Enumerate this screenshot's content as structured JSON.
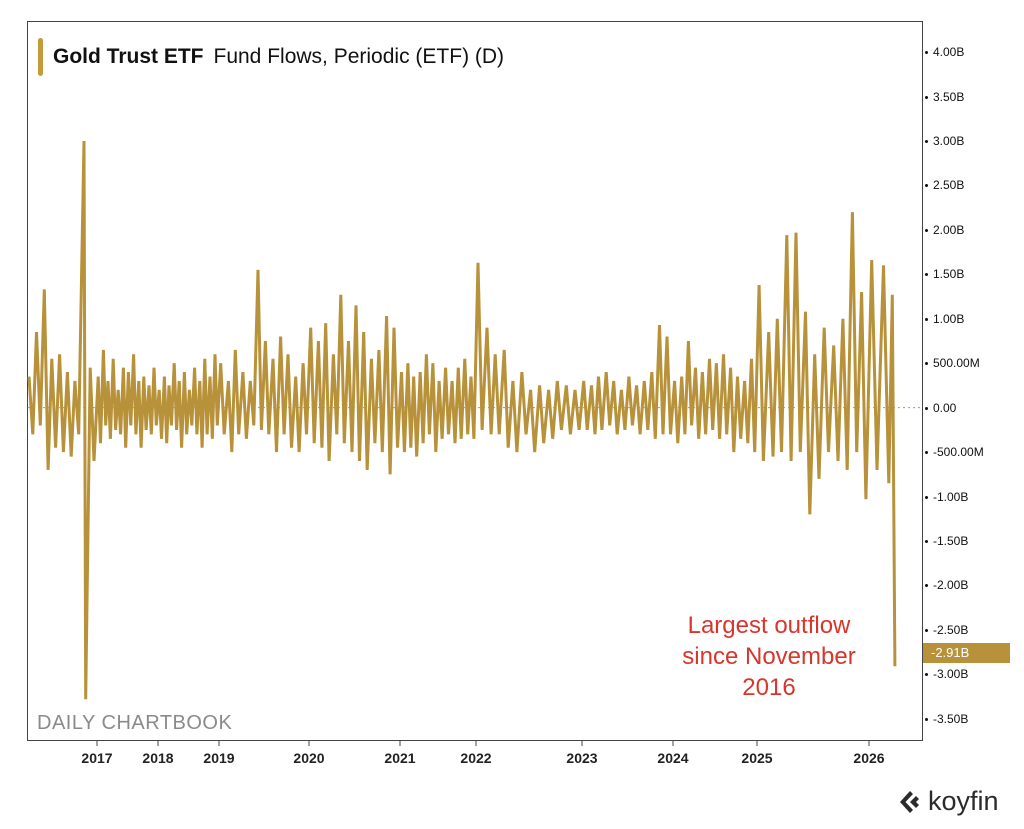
{
  "chart_data": {
    "type": "line",
    "title": "Gold Trust ETF",
    "subtitle": "Fund Flows, Periodic (ETF) (D)",
    "series_color": "#B8923A",
    "annotation_color": "#D8362C",
    "xlabel": "",
    "ylabel": "",
    "xlim": [
      "2016-04-01",
      "2026-05-20"
    ],
    "ylim": [
      -3.75,
      4.35
    ],
    "y_unit": "B",
    "grid": false,
    "zero_line": "dotted",
    "y_axis_position": "right",
    "x_ticks": [
      "2017",
      "2018",
      "2019",
      "2020",
      "2021",
      "2022",
      "2023",
      "2024",
      "2025",
      "2026"
    ],
    "y_ticks": [
      {
        "value": 4.0,
        "label": "4.00B"
      },
      {
        "value": 3.5,
        "label": "3.50B"
      },
      {
        "value": 3.0,
        "label": "3.00B"
      },
      {
        "value": 2.5,
        "label": "2.50B"
      },
      {
        "value": 2.0,
        "label": "2.00B"
      },
      {
        "value": 1.5,
        "label": "1.50B"
      },
      {
        "value": 1.0,
        "label": "1.00B"
      },
      {
        "value": 0.5,
        "label": "500.00M"
      },
      {
        "value": 0.0,
        "label": "0.00"
      },
      {
        "value": -0.5,
        "label": "-500.00M"
      },
      {
        "value": -1.0,
        "label": "-1.00B"
      },
      {
        "value": -1.5,
        "label": "-1.50B"
      },
      {
        "value": -2.0,
        "label": "-2.00B"
      },
      {
        "value": -2.5,
        "label": "-2.50B"
      },
      {
        "value": -3.0,
        "label": "-3.00B"
      },
      {
        "value": -3.5,
        "label": "-3.50B"
      }
    ],
    "last_value_label": "-2.91B",
    "last_value": -2.91,
    "annotation": [
      "Largest outflow",
      "since November",
      "2016"
    ],
    "watermark": "DAILY CHARTBOOK",
    "points": [
      [
        "2016-04-05",
        0.35
      ],
      [
        "2016-04-20",
        -0.3
      ],
      [
        "2016-05-05",
        0.85
      ],
      [
        "2016-05-20",
        -0.2
      ],
      [
        "2016-06-05",
        1.33
      ],
      [
        "2016-06-20",
        -0.7
      ],
      [
        "2016-07-05",
        0.55
      ],
      [
        "2016-07-20",
        -0.45
      ],
      [
        "2016-08-05",
        0.6
      ],
      [
        "2016-08-20",
        -0.5
      ],
      [
        "2016-09-05",
        0.4
      ],
      [
        "2016-09-20",
        -0.55
      ],
      [
        "2016-10-05",
        0.3
      ],
      [
        "2016-10-20",
        -0.3
      ],
      [
        "2016-11-10",
        3.0
      ],
      [
        "2016-11-17",
        -3.28
      ],
      [
        "2016-12-05",
        0.45
      ],
      [
        "2016-12-20",
        -0.6
      ],
      [
        "2017-01-08",
        0.35
      ],
      [
        "2017-01-22",
        -0.4
      ],
      [
        "2017-02-08",
        0.65
      ],
      [
        "2017-02-22",
        -0.2
      ],
      [
        "2017-03-08",
        0.3
      ],
      [
        "2017-03-22",
        -0.35
      ],
      [
        "2017-04-08",
        0.55
      ],
      [
        "2017-04-22",
        -0.25
      ],
      [
        "2017-05-08",
        0.2
      ],
      [
        "2017-05-22",
        -0.3
      ],
      [
        "2017-06-08",
        0.45
      ],
      [
        "2017-06-22",
        -0.45
      ],
      [
        "2017-07-08",
        0.4
      ],
      [
        "2017-07-22",
        -0.2
      ],
      [
        "2017-08-08",
        0.6
      ],
      [
        "2017-08-22",
        -0.3
      ],
      [
        "2017-09-08",
        0.3
      ],
      [
        "2017-09-22",
        -0.45
      ],
      [
        "2017-10-08",
        0.35
      ],
      [
        "2017-10-22",
        -0.25
      ],
      [
        "2017-11-08",
        0.25
      ],
      [
        "2017-11-22",
        -0.3
      ],
      [
        "2017-12-08",
        0.45
      ],
      [
        "2017-12-22",
        -0.2
      ],
      [
        "2018-01-08",
        0.2
      ],
      [
        "2018-01-22",
        -0.35
      ],
      [
        "2018-02-08",
        0.35
      ],
      [
        "2018-02-22",
        -0.4
      ],
      [
        "2018-03-08",
        0.25
      ],
      [
        "2018-03-22",
        -0.2
      ],
      [
        "2018-04-08",
        0.5
      ],
      [
        "2018-04-22",
        -0.25
      ],
      [
        "2018-05-08",
        0.3
      ],
      [
        "2018-05-22",
        -0.45
      ],
      [
        "2018-06-08",
        0.4
      ],
      [
        "2018-06-22",
        -0.3
      ],
      [
        "2018-07-08",
        0.2
      ],
      [
        "2018-07-22",
        -0.2
      ],
      [
        "2018-08-08",
        0.45
      ],
      [
        "2018-08-22",
        -0.3
      ],
      [
        "2018-09-08",
        0.3
      ],
      [
        "2018-09-22",
        -0.45
      ],
      [
        "2018-10-08",
        0.55
      ],
      [
        "2018-10-22",
        -0.3
      ],
      [
        "2018-11-08",
        0.35
      ],
      [
        "2018-11-22",
        -0.35
      ],
      [
        "2018-12-08",
        0.6
      ],
      [
        "2018-12-22",
        -0.2
      ],
      [
        "2019-01-08",
        0.5
      ],
      [
        "2019-01-22",
        -0.3
      ],
      [
        "2019-02-08",
        0.3
      ],
      [
        "2019-02-22",
        -0.5
      ],
      [
        "2019-03-08",
        0.65
      ],
      [
        "2019-03-22",
        -0.3
      ],
      [
        "2019-04-08",
        0.4
      ],
      [
        "2019-04-22",
        -0.35
      ],
      [
        "2019-05-08",
        0.3
      ],
      [
        "2019-05-22",
        -0.2
      ],
      [
        "2019-06-08",
        1.55
      ],
      [
        "2019-06-22",
        -0.25
      ],
      [
        "2019-07-08",
        0.75
      ],
      [
        "2019-07-22",
        -0.3
      ],
      [
        "2019-08-08",
        0.55
      ],
      [
        "2019-08-22",
        -0.5
      ],
      [
        "2019-09-08",
        0.8
      ],
      [
        "2019-09-22",
        -0.3
      ],
      [
        "2019-10-08",
        0.6
      ],
      [
        "2019-10-22",
        -0.45
      ],
      [
        "2019-11-08",
        0.35
      ],
      [
        "2019-11-22",
        -0.5
      ],
      [
        "2019-12-08",
        0.5
      ],
      [
        "2019-12-22",
        -0.3
      ],
      [
        "2020-01-08",
        0.9
      ],
      [
        "2020-01-22",
        -0.4
      ],
      [
        "2020-02-08",
        0.75
      ],
      [
        "2020-02-22",
        -0.45
      ],
      [
        "2020-03-08",
        0.95
      ],
      [
        "2020-03-22",
        -0.6
      ],
      [
        "2020-04-08",
        0.6
      ],
      [
        "2020-04-22",
        -0.3
      ],
      [
        "2020-05-08",
        1.27
      ],
      [
        "2020-05-22",
        -0.4
      ],
      [
        "2020-06-08",
        0.75
      ],
      [
        "2020-06-22",
        -0.5
      ],
      [
        "2020-07-08",
        1.15
      ],
      [
        "2020-07-22",
        -0.6
      ],
      [
        "2020-08-08",
        0.85
      ],
      [
        "2020-08-22",
        -0.7
      ],
      [
        "2020-09-08",
        0.55
      ],
      [
        "2020-09-22",
        -0.4
      ],
      [
        "2020-10-08",
        0.65
      ],
      [
        "2020-10-22",
        -0.5
      ],
      [
        "2020-11-08",
        1.03
      ],
      [
        "2020-11-22",
        -0.75
      ],
      [
        "2020-12-08",
        0.9
      ],
      [
        "2020-12-22",
        -0.45
      ],
      [
        "2021-01-08",
        0.4
      ],
      [
        "2021-01-22",
        -0.5
      ],
      [
        "2021-02-08",
        0.5
      ],
      [
        "2021-02-22",
        -0.45
      ],
      [
        "2021-03-08",
        0.35
      ],
      [
        "2021-03-22",
        -0.55
      ],
      [
        "2021-04-08",
        0.4
      ],
      [
        "2021-04-22",
        -0.4
      ],
      [
        "2021-05-08",
        0.6
      ],
      [
        "2021-05-22",
        -0.3
      ],
      [
        "2021-06-08",
        0.5
      ],
      [
        "2021-06-22",
        -0.5
      ],
      [
        "2021-07-08",
        0.3
      ],
      [
        "2021-07-22",
        -0.35
      ],
      [
        "2021-08-08",
        0.45
      ],
      [
        "2021-08-22",
        -0.3
      ],
      [
        "2021-09-08",
        0.3
      ],
      [
        "2021-09-22",
        -0.4
      ],
      [
        "2021-10-08",
        0.45
      ],
      [
        "2021-10-22",
        -0.35
      ],
      [
        "2021-11-08",
        0.55
      ],
      [
        "2021-11-22",
        -0.3
      ],
      [
        "2021-12-08",
        0.35
      ],
      [
        "2021-12-22",
        -0.35
      ],
      [
        "2022-01-08",
        1.63
      ],
      [
        "2022-01-22",
        -0.25
      ],
      [
        "2022-02-08",
        0.9
      ],
      [
        "2022-02-22",
        -0.3
      ],
      [
        "2022-03-08",
        0.6
      ],
      [
        "2022-03-22",
        -0.3
      ],
      [
        "2022-04-08",
        0.65
      ],
      [
        "2022-04-22",
        -0.45
      ],
      [
        "2022-05-08",
        0.3
      ],
      [
        "2022-05-22",
        -0.5
      ],
      [
        "2022-06-08",
        0.4
      ],
      [
        "2022-06-22",
        -0.3
      ],
      [
        "2022-07-08",
        0.2
      ],
      [
        "2022-07-22",
        -0.5
      ],
      [
        "2022-08-08",
        0.25
      ],
      [
        "2022-08-22",
        -0.4
      ],
      [
        "2022-09-08",
        0.2
      ],
      [
        "2022-09-22",
        -0.35
      ],
      [
        "2022-10-08",
        0.3
      ],
      [
        "2022-10-22",
        -0.25
      ],
      [
        "2022-11-08",
        0.25
      ],
      [
        "2022-11-22",
        -0.3
      ],
      [
        "2022-12-08",
        0.2
      ],
      [
        "2022-12-22",
        -0.25
      ],
      [
        "2023-01-08",
        0.3
      ],
      [
        "2023-01-22",
        -0.25
      ],
      [
        "2023-02-08",
        0.25
      ],
      [
        "2023-02-22",
        -0.3
      ],
      [
        "2023-03-08",
        0.35
      ],
      [
        "2023-03-22",
        -0.25
      ],
      [
        "2023-04-08",
        0.4
      ],
      [
        "2023-04-22",
        -0.2
      ],
      [
        "2023-05-08",
        0.3
      ],
      [
        "2023-05-22",
        -0.3
      ],
      [
        "2023-06-08",
        0.2
      ],
      [
        "2023-06-22",
        -0.25
      ],
      [
        "2023-07-08",
        0.35
      ],
      [
        "2023-07-22",
        -0.2
      ],
      [
        "2023-08-08",
        0.25
      ],
      [
        "2023-08-22",
        -0.3
      ],
      [
        "2023-09-08",
        0.3
      ],
      [
        "2023-09-22",
        -0.25
      ],
      [
        "2023-10-08",
        0.4
      ],
      [
        "2023-10-22",
        -0.35
      ],
      [
        "2023-11-08",
        0.93
      ],
      [
        "2023-11-22",
        -0.3
      ],
      [
        "2023-12-08",
        0.8
      ],
      [
        "2023-12-22",
        -0.3
      ],
      [
        "2024-01-08",
        0.3
      ],
      [
        "2024-01-22",
        -0.4
      ],
      [
        "2024-02-08",
        0.35
      ],
      [
        "2024-02-22",
        -0.3
      ],
      [
        "2024-03-08",
        0.75
      ],
      [
        "2024-03-22",
        -0.2
      ],
      [
        "2024-04-08",
        0.45
      ],
      [
        "2024-04-22",
        -0.35
      ],
      [
        "2024-05-08",
        0.4
      ],
      [
        "2024-05-22",
        -0.3
      ],
      [
        "2024-06-08",
        0.55
      ],
      [
        "2024-06-22",
        -0.25
      ],
      [
        "2024-07-08",
        0.5
      ],
      [
        "2024-07-22",
        -0.35
      ],
      [
        "2024-08-08",
        0.6
      ],
      [
        "2024-08-22",
        -0.3
      ],
      [
        "2024-09-08",
        0.45
      ],
      [
        "2024-09-22",
        -0.5
      ],
      [
        "2024-10-08",
        0.35
      ],
      [
        "2024-10-22",
        -0.35
      ],
      [
        "2024-11-08",
        0.3
      ],
      [
        "2024-11-22",
        -0.4
      ],
      [
        "2024-12-08",
        0.55
      ],
      [
        "2024-12-22",
        -0.5
      ],
      [
        "2025-01-08",
        1.38
      ],
      [
        "2025-01-22",
        -0.6
      ],
      [
        "2025-02-08",
        0.85
      ],
      [
        "2025-02-22",
        -0.55
      ],
      [
        "2025-03-08",
        1.0
      ],
      [
        "2025-03-22",
        -0.5
      ],
      [
        "2025-04-08",
        1.94
      ],
      [
        "2025-04-22",
        -0.6
      ],
      [
        "2025-05-08",
        1.97
      ],
      [
        "2025-05-22",
        -0.5
      ],
      [
        "2025-06-08",
        1.08
      ],
      [
        "2025-06-22",
        -1.2
      ],
      [
        "2025-07-08",
        0.6
      ],
      [
        "2025-07-22",
        -0.8
      ],
      [
        "2025-08-08",
        0.9
      ],
      [
        "2025-08-22",
        -0.5
      ],
      [
        "2025-09-08",
        0.7
      ],
      [
        "2025-09-22",
        -0.6
      ],
      [
        "2025-10-08",
        1.0
      ],
      [
        "2025-10-22",
        -0.7
      ],
      [
        "2025-11-08",
        2.2
      ],
      [
        "2025-11-22",
        -0.5
      ],
      [
        "2025-12-08",
        1.3
      ],
      [
        "2025-12-22",
        -1.03
      ],
      [
        "2026-01-08",
        1.66
      ],
      [
        "2026-01-22",
        -0.7
      ],
      [
        "2026-02-08",
        1.6
      ],
      [
        "2026-02-22",
        -0.85
      ],
      [
        "2026-03-03",
        1.27
      ],
      [
        "2026-03-10",
        -2.91
      ]
    ]
  },
  "branding": {
    "logo_text": "koyfin"
  }
}
